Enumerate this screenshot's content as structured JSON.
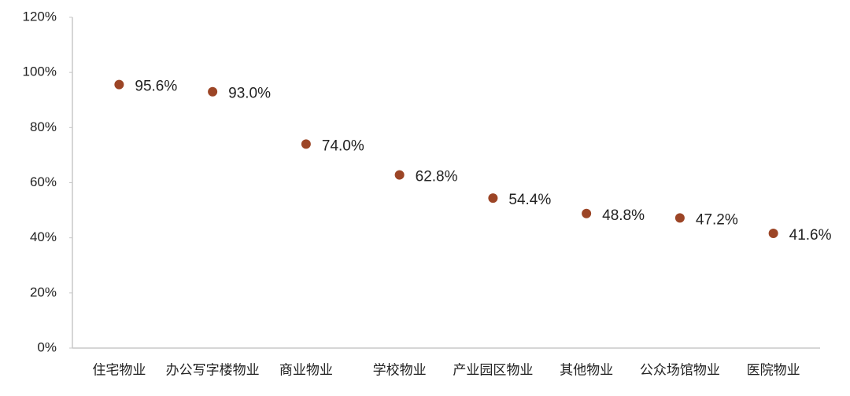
{
  "chart_data": {
    "type": "dot",
    "categories": [
      "住宅物业",
      "办公写字楼物业",
      "商业物业",
      "学校物业",
      "产业园区物业",
      "其他物业",
      "公众场馆物业",
      "医院物业"
    ],
    "values": [
      95.6,
      93.0,
      74.0,
      62.8,
      54.4,
      48.8,
      47.2,
      41.6
    ],
    "value_labels": [
      "95.6%",
      "93.0%",
      "74.0%",
      "62.8%",
      "54.4%",
      "48.8%",
      "47.2%",
      "41.6%"
    ],
    "color": "#9c4526",
    "ylim": [
      0,
      120
    ],
    "yticks": [
      {
        "value": 0,
        "label": "0%"
      },
      {
        "value": 20,
        "label": "20%"
      },
      {
        "value": 40,
        "label": "40%"
      },
      {
        "value": 60,
        "label": "60%"
      },
      {
        "value": 80,
        "label": "80%"
      },
      {
        "value": 100,
        "label": "100%"
      },
      {
        "value": 120,
        "label": "120%"
      }
    ],
    "grid": false
  }
}
